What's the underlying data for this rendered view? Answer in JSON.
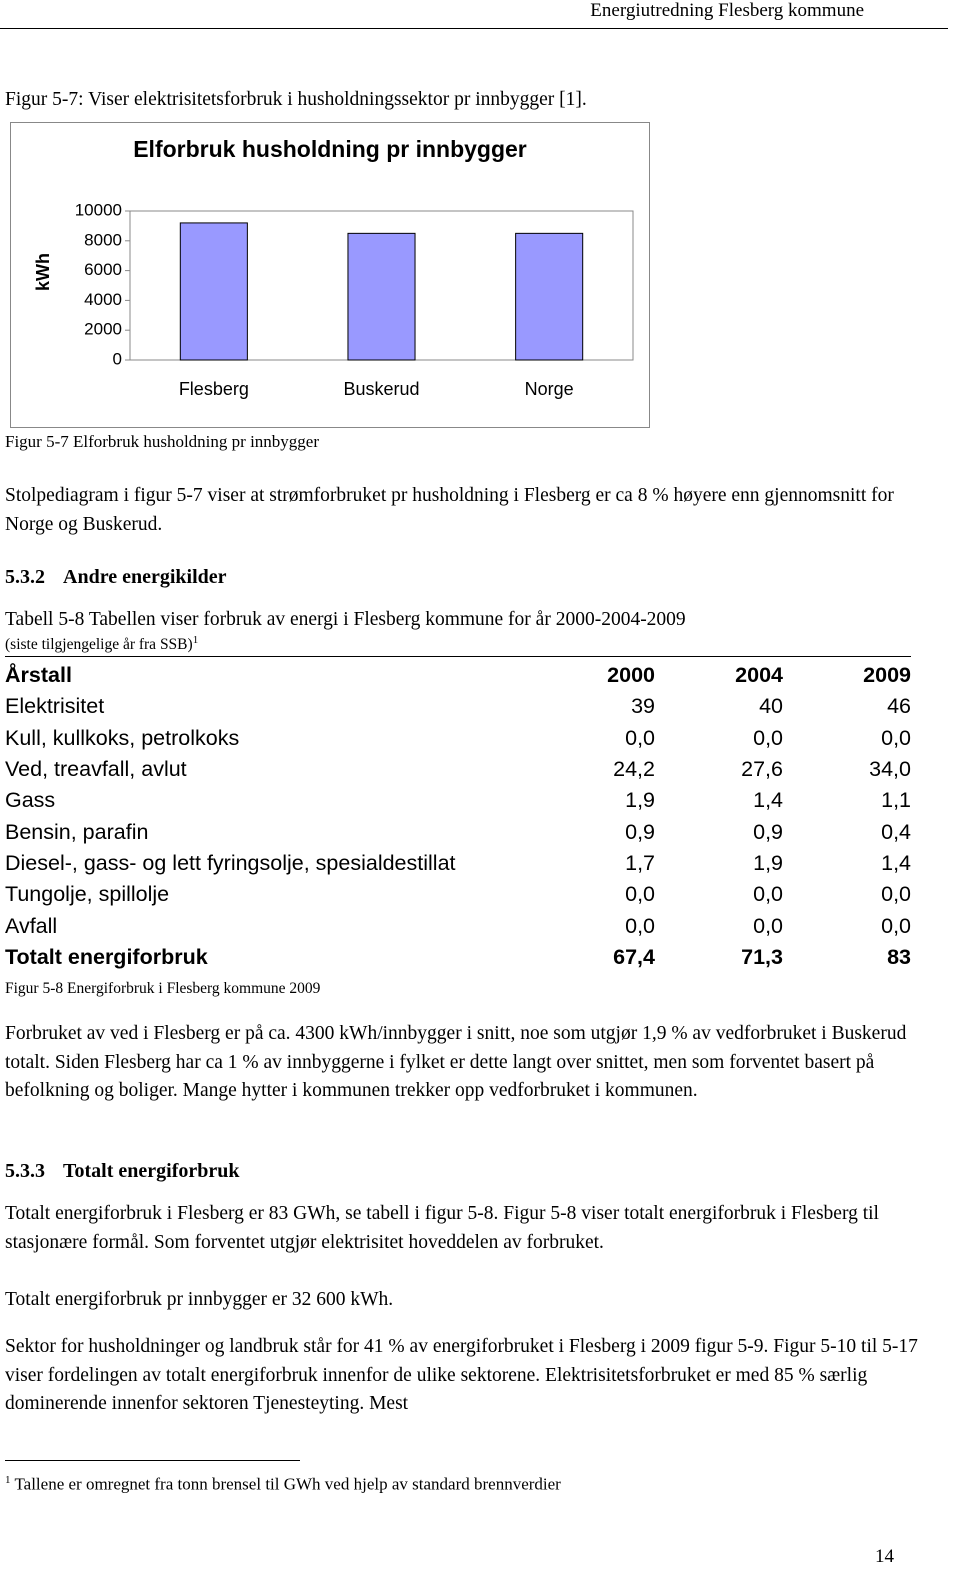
{
  "header": {
    "title": "Energiutredning Flesberg kommune"
  },
  "figure_intro": "Figur 5-7: Viser elektrisitetsforbruk i husholdningssektor pr innbygger [1].",
  "chart_data": {
    "type": "bar",
    "title": "Elforbruk  husholdning pr innbygger",
    "y_label": "kWh",
    "categories": [
      "Flesberg",
      "Buskerud",
      "Norge"
    ],
    "values": [
      9200,
      8500,
      8500
    ],
    "color": "#9999ff",
    "ylim": [
      0,
      10000
    ],
    "yticks": [
      0,
      2000,
      4000,
      6000,
      8000,
      10000
    ],
    "grid": false
  },
  "chart_caption": "Figur 5-7 Elforbruk husholdning pr innbygger",
  "paragraph_1": "Stolpediagram i figur 5-7 viser at strømforbruket pr husholdning i Flesberg er ca 8 % høyere enn gjennomsnitt for Norge og Buskerud.",
  "section_1": {
    "number": "5.3.2",
    "title": "Andre energikilder"
  },
  "table_caption": "Tabell 5-8 Tabellen viser forbruk av energi i Flesberg kommune for år 2000-2004-2009",
  "table_subcaption": "(siste tilgjengelige år fra SSB)",
  "footnote_marker": "1",
  "table": {
    "header": [
      "Årstall",
      "2000",
      "2004",
      "2009"
    ],
    "rows": [
      [
        "Elektrisitet",
        "39",
        "40",
        "46"
      ],
      [
        "Kull, kullkoks, petrolkoks",
        "0,0",
        "0,0",
        "0,0"
      ],
      [
        "Ved, treavfall, avlut",
        "24,2",
        "27,6",
        "34,0"
      ],
      [
        "Gass",
        "1,9",
        "1,4",
        "1,1"
      ],
      [
        "Bensin, parafin",
        "0,9",
        "0,9",
        "0,4"
      ],
      [
        "Diesel-, gass- og lett fyringsolje, spesialdestillat",
        "1,7",
        "1,9",
        "1,4"
      ],
      [
        "Tungolje, spillolje",
        "0,0",
        "0,0",
        "0,0"
      ],
      [
        "Avfall",
        "0,0",
        "0,0",
        "0,0"
      ]
    ],
    "total": [
      "Totalt energiforbruk",
      "67,4",
      "71,3",
      "83"
    ]
  },
  "table_figure_caption": "Figur 5-8 Energiforbruk i Flesberg kommune 2009",
  "paragraph_2": "Forbruket av ved i Flesberg er på ca. 4300 kWh/innbygger i snitt, noe som utgjør 1,9 % av vedforbruket i Buskerud totalt. Siden Flesberg har ca 1 % av innbyggerne i fylket er dette langt over snittet, men som forventet basert på befolkning og boliger. Mange hytter i kommunen trekker opp vedforbruket i kommunen.",
  "section_2": {
    "number": "5.3.3",
    "title": "Totalt energiforbruk"
  },
  "paragraph_3": "Totalt energiforbruk i Flesberg er 83 GWh, se tabell i figur 5-8. Figur 5-8 viser totalt energiforbruk i Flesberg til stasjonære formål. Som forventet utgjør elektrisitet hoveddelen av forbruket.",
  "paragraph_4": "Totalt energiforbruk pr innbygger er 32 600 kWh.",
  "paragraph_5": "Sektor for husholdninger og landbruk står for 41 % av energiforbruket i Flesberg i 2009 figur 5-9. Figur 5-10 til 5-17 viser fordelingen av totalt energiforbruk innenfor de ulike sektorene. Elektrisitetsforbruket er med 85 % særlig dominerende innenfor sektoren Tjenesteyting. Mest",
  "footnote": {
    "marker": "1",
    "text": "Tallene er omregnet fra tonn brensel til GWh ved hjelp av standard brennverdier"
  },
  "page_number": "14"
}
